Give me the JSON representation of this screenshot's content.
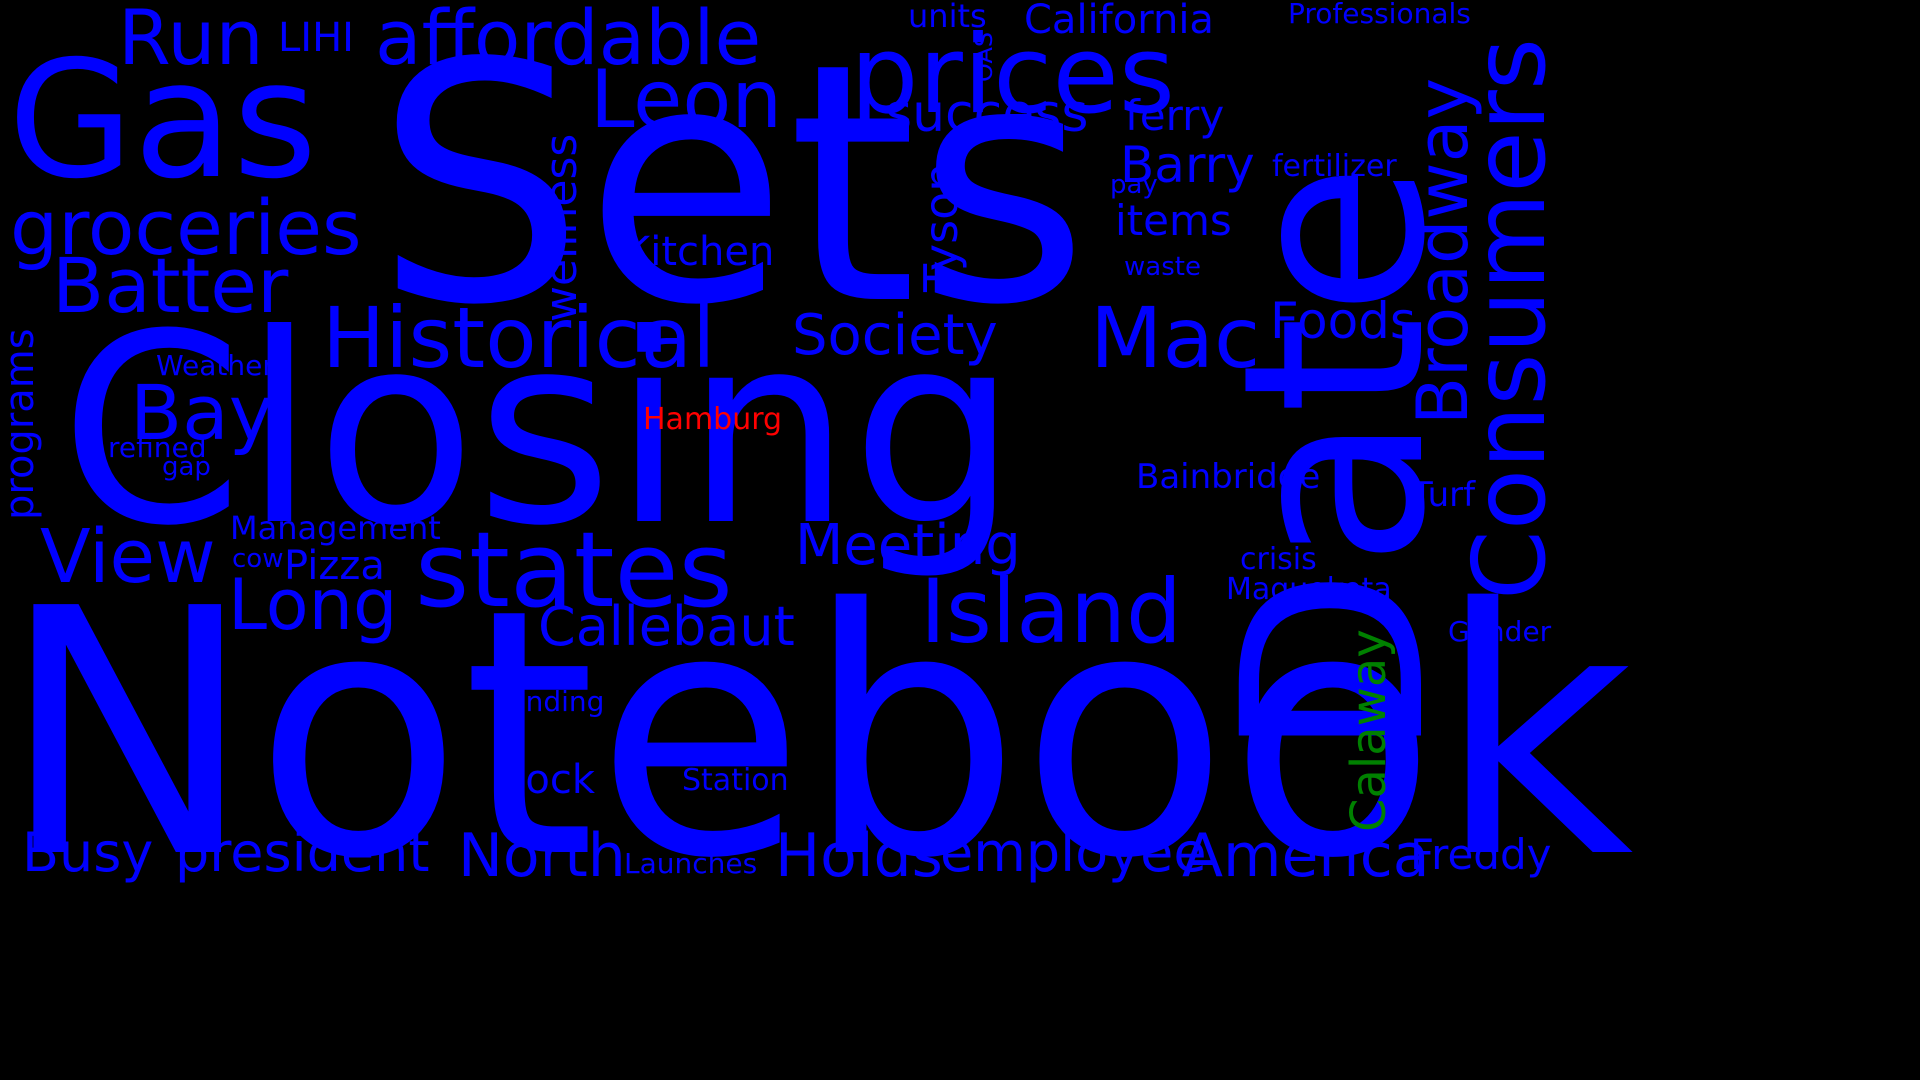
{
  "background": "#000000",
  "colors": {
    "primary": "#0000ff",
    "accent_red": "#ff0000",
    "accent_green": "#008000"
  },
  "words": {
    "notebook": "Notebook",
    "closing": "Closing",
    "sets": "Sets",
    "date": "Date",
    "gas": "Gas",
    "prices": "prices",
    "states": "states",
    "island": "Island",
    "consumers": "Consumers",
    "historical": "Historical",
    "mac": "Mac",
    "leon": "Leon",
    "affordable": "affordable",
    "run": "Run",
    "groceries": "groceries",
    "batter": "Batter",
    "broadway": "Broadway",
    "view": "View",
    "long": "Long",
    "bay": "Bay",
    "north": "North",
    "holds": "Holds",
    "america": "America",
    "employee": "employee",
    "president": "president",
    "busy": "Busy",
    "meeting": "Meeting",
    "callebaut": "Callebaut",
    "society": "Society",
    "success": "success",
    "barry": "Barry",
    "wellness": "wellness",
    "tyson": "Tyson",
    "foods": "Foods",
    "california": "California",
    "kitchen": "Kitchen",
    "items": "items",
    "ferry": "ferry",
    "freddy": "Freddy",
    "calaway": "Calaway",
    "programs": "programs",
    "units": "units",
    "lihi": "LIHI",
    "professionals": "Professionals",
    "fertilizer": "fertilizer",
    "pay": "pay",
    "waste": "waste",
    "oas": "OAS",
    "weather": "Weather",
    "refined": "refined",
    "gap": "gap",
    "hamburg": "Hamburg",
    "management": "Management",
    "cow": "cow",
    "pizza": "Pizza",
    "bainbridge": "Bainbridge",
    "turf": "Turf",
    "crisis": "crisis",
    "maquoketa": "Maquoketa",
    "gender": "Gender",
    "menu": "menu",
    "funding": "funding",
    "dock": "dock",
    "station": "Station",
    "launches": "Launches"
  }
}
